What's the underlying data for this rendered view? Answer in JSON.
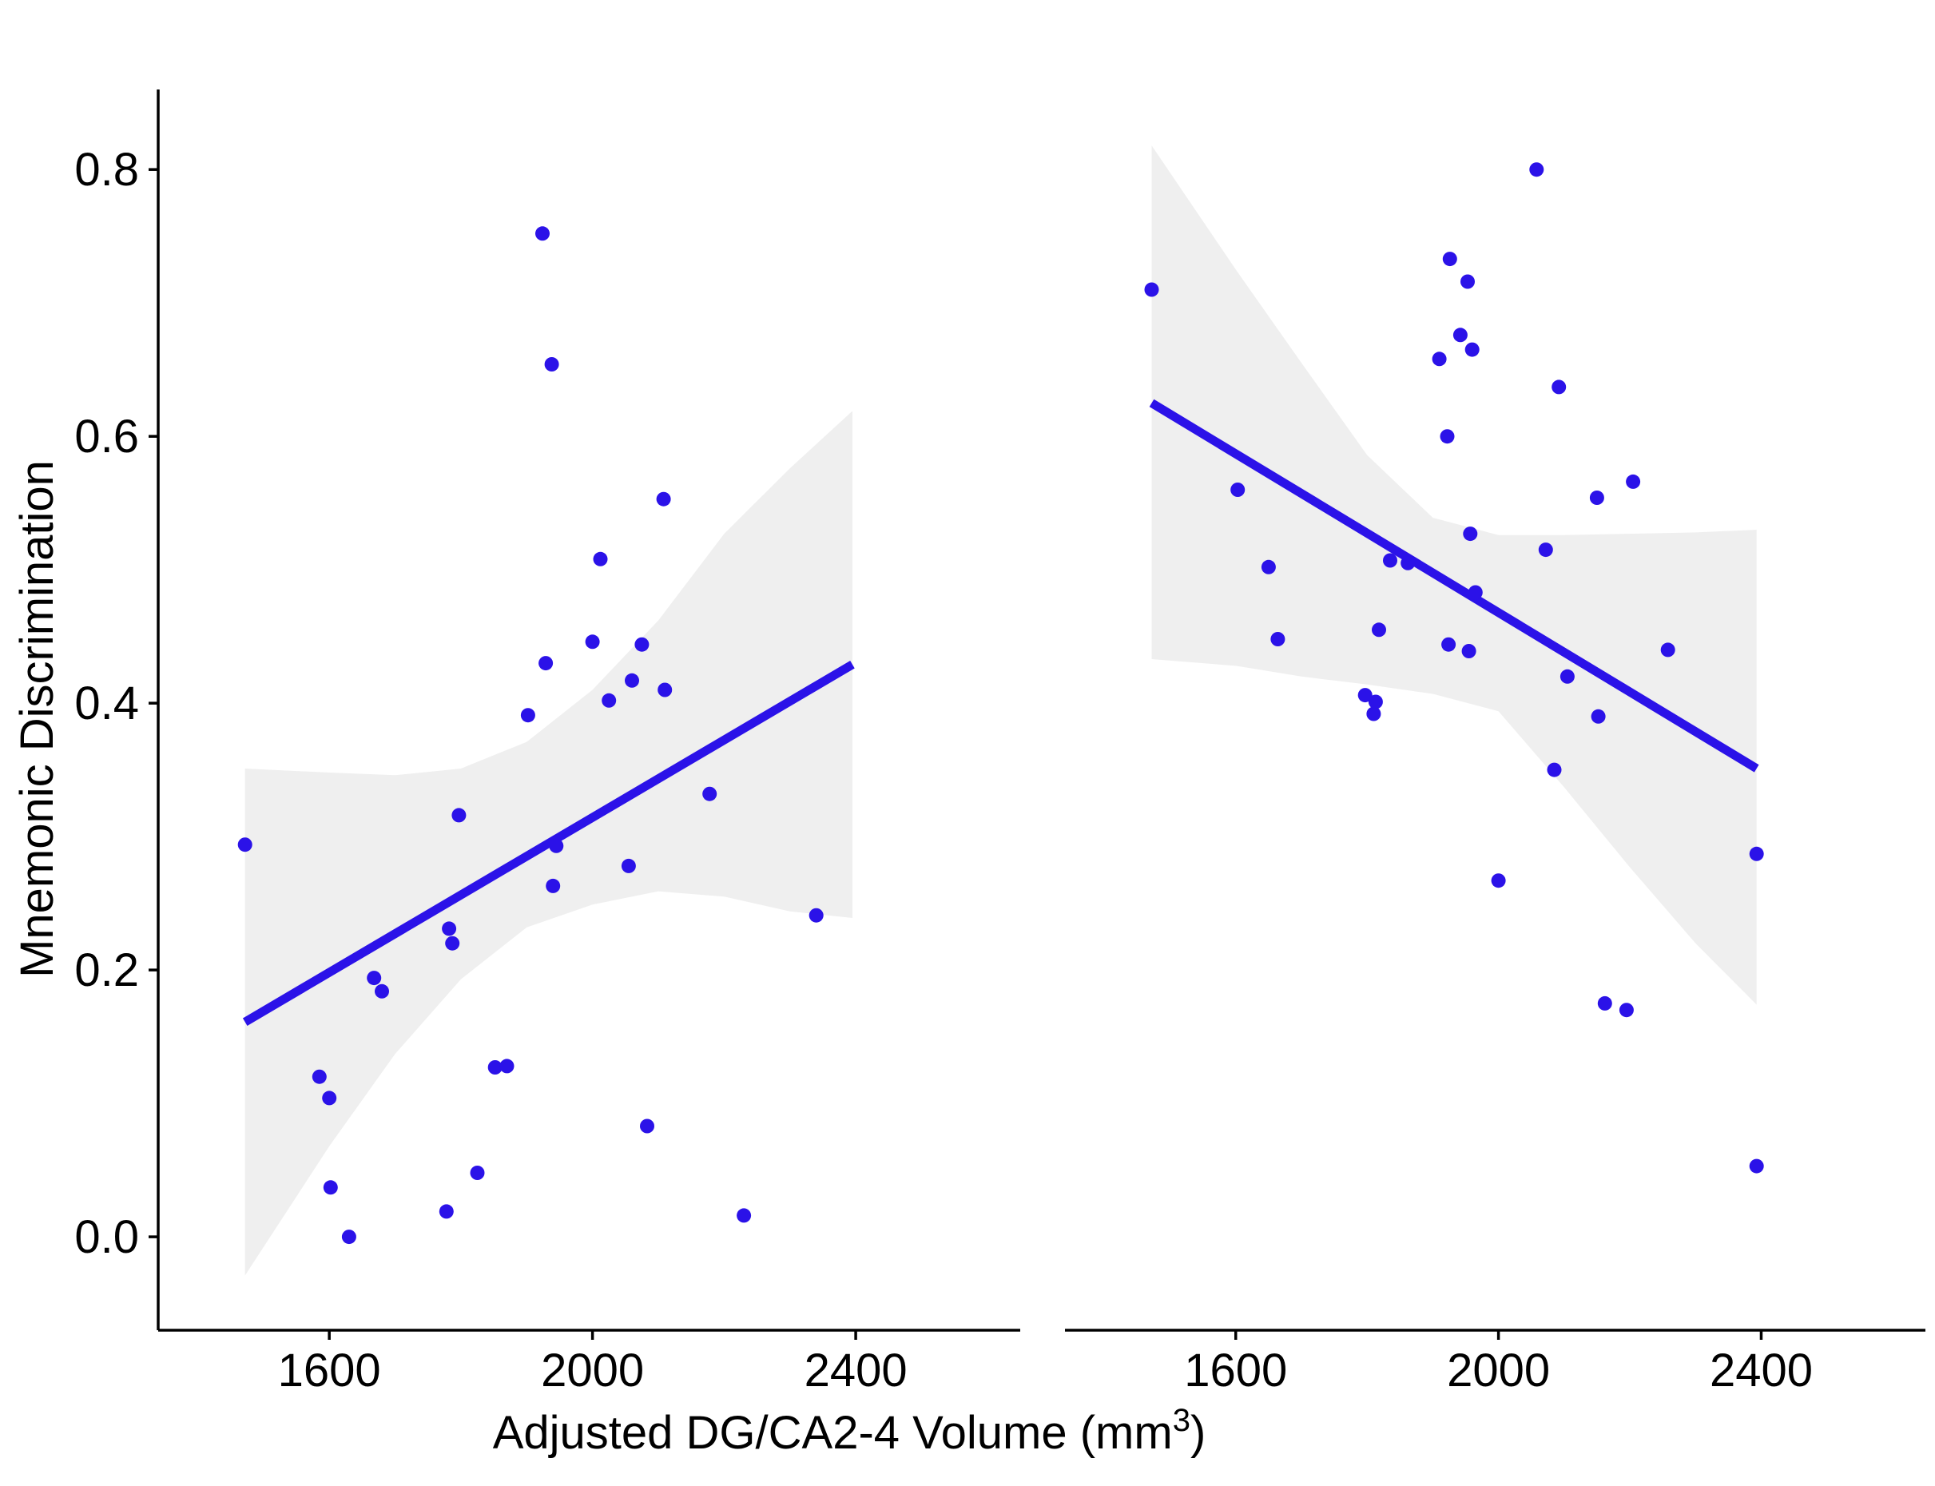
{
  "colors": {
    "points": "#2b12e8",
    "line": "#2b12e8",
    "ribbon": "#efefef",
    "axis": "#000000"
  },
  "axes": {
    "x_title_main": "Adjusted DG/CA2-4 Volume (mm",
    "x_title_sup": "3",
    "x_title_close": ")",
    "y_title": "Mnemonic Discrimination",
    "x_ticks": [
      1600,
      2000,
      2400
    ],
    "y_ticks": [
      "0.0",
      "0.2",
      "0.4",
      "0.6",
      "0.8"
    ]
  },
  "chart_data": [
    {
      "type": "scatter",
      "panel": "left",
      "xlabel": "Adjusted DG/CA2-4 Volume (mm3)",
      "ylabel": "Mnemonic Discrimination",
      "xlim": [
        1340,
        2650
      ],
      "ylim": [
        -0.07,
        0.86
      ],
      "grid": false,
      "trend": {
        "x": [
          1472,
          2395
        ],
        "y": [
          0.161,
          0.429
        ]
      },
      "ribbon": {
        "x": [
          1472,
          1600,
          1700,
          1800,
          1900,
          2000,
          2100,
          2200,
          2300,
          2395
        ],
        "upper": [
          0.351,
          0.348,
          0.346,
          0.351,
          0.371,
          0.41,
          0.462,
          0.527,
          0.576,
          0.619
        ],
        "lower": [
          -0.029,
          0.068,
          0.137,
          0.193,
          0.232,
          0.249,
          0.259,
          0.255,
          0.244,
          0.239
        ]
      },
      "points": [
        {
          "x": 1472,
          "y": 0.294
        },
        {
          "x": 1585,
          "y": 0.12
        },
        {
          "x": 1600,
          "y": 0.104
        },
        {
          "x": 1602,
          "y": 0.037
        },
        {
          "x": 1630,
          "y": 0.0
        },
        {
          "x": 1668,
          "y": 0.194
        },
        {
          "x": 1680,
          "y": 0.184
        },
        {
          "x": 1778,
          "y": 0.019
        },
        {
          "x": 1782,
          "y": 0.231
        },
        {
          "x": 1787,
          "y": 0.22
        },
        {
          "x": 1797,
          "y": 0.316
        },
        {
          "x": 1825,
          "y": 0.048
        },
        {
          "x": 1852,
          "y": 0.127
        },
        {
          "x": 1870,
          "y": 0.128
        },
        {
          "x": 1902,
          "y": 0.391
        },
        {
          "x": 1924,
          "y": 0.752
        },
        {
          "x": 1929,
          "y": 0.43
        },
        {
          "x": 1938,
          "y": 0.654
        },
        {
          "x": 1940,
          "y": 0.263
        },
        {
          "x": 1945,
          "y": 0.293
        },
        {
          "x": 2000,
          "y": 0.446
        },
        {
          "x": 2012,
          "y": 0.508
        },
        {
          "x": 2025,
          "y": 0.402
        },
        {
          "x": 2055,
          "y": 0.278
        },
        {
          "x": 2060,
          "y": 0.417
        },
        {
          "x": 2075,
          "y": 0.444
        },
        {
          "x": 2083,
          "y": 0.083
        },
        {
          "x": 2108,
          "y": 0.553
        },
        {
          "x": 2110,
          "y": 0.41
        },
        {
          "x": 2178,
          "y": 0.332
        },
        {
          "x": 2230,
          "y": 0.016
        },
        {
          "x": 2340,
          "y": 0.241
        }
      ]
    },
    {
      "type": "scatter",
      "panel": "right",
      "xlabel": "Adjusted DG/CA2-4 Volume (mm3)",
      "ylabel": "Mnemonic Discrimination",
      "xlim": [
        1340,
        2650
      ],
      "ylim": [
        -0.07,
        0.86
      ],
      "grid": false,
      "trend": {
        "x": [
          1472,
          2393
        ],
        "y": [
          0.625,
          0.351
        ]
      },
      "ribbon": {
        "x": [
          1472,
          1600,
          1700,
          1800,
          1900,
          2000,
          2100,
          2200,
          2300,
          2393
        ],
        "upper": [
          0.818,
          0.725,
          0.655,
          0.586,
          0.539,
          0.526,
          0.526,
          0.527,
          0.528,
          0.53
        ],
        "lower": [
          0.433,
          0.428,
          0.42,
          0.414,
          0.407,
          0.394,
          0.337,
          0.277,
          0.22,
          0.174
        ]
      },
      "points": [
        {
          "x": 1472,
          "y": 0.71
        },
        {
          "x": 1603,
          "y": 0.56
        },
        {
          "x": 1650,
          "y": 0.502
        },
        {
          "x": 1664,
          "y": 0.448
        },
        {
          "x": 1797,
          "y": 0.406
        },
        {
          "x": 1810,
          "y": 0.392
        },
        {
          "x": 1813,
          "y": 0.401
        },
        {
          "x": 1818,
          "y": 0.455
        },
        {
          "x": 1835,
          "y": 0.507
        },
        {
          "x": 1862,
          "y": 0.505
        },
        {
          "x": 1910,
          "y": 0.658
        },
        {
          "x": 1922,
          "y": 0.6
        },
        {
          "x": 1924,
          "y": 0.444
        },
        {
          "x": 1926,
          "y": 0.733
        },
        {
          "x": 1942,
          "y": 0.676
        },
        {
          "x": 1953,
          "y": 0.716
        },
        {
          "x": 1955,
          "y": 0.439
        },
        {
          "x": 1957,
          "y": 0.527
        },
        {
          "x": 1960,
          "y": 0.665
        },
        {
          "x": 1965,
          "y": 0.483
        },
        {
          "x": 2000,
          "y": 0.267
        },
        {
          "x": 2058,
          "y": 0.8
        },
        {
          "x": 2072,
          "y": 0.515
        },
        {
          "x": 2085,
          "y": 0.35
        },
        {
          "x": 2092,
          "y": 0.637
        },
        {
          "x": 2105,
          "y": 0.42
        },
        {
          "x": 2150,
          "y": 0.554
        },
        {
          "x": 2152,
          "y": 0.39
        },
        {
          "x": 2162,
          "y": 0.175
        },
        {
          "x": 2195,
          "y": 0.17
        },
        {
          "x": 2205,
          "y": 0.566
        },
        {
          "x": 2258,
          "y": 0.44
        },
        {
          "x": 2393,
          "y": 0.287
        },
        {
          "x": 2393,
          "y": 0.053
        }
      ]
    }
  ]
}
